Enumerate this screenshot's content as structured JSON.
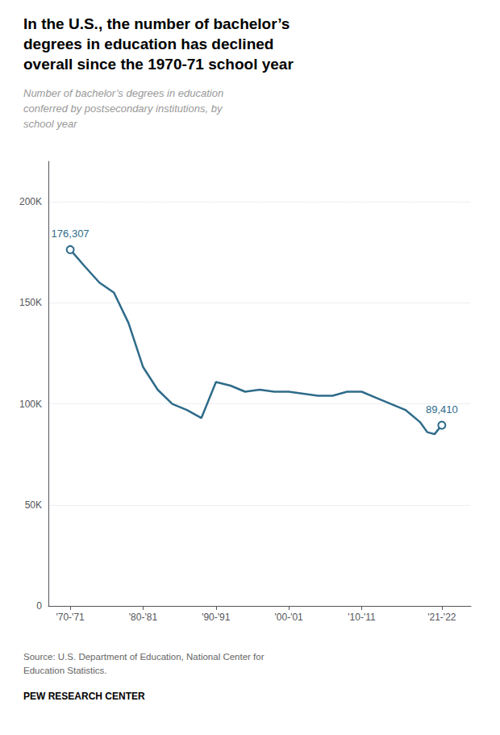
{
  "chart_data": {
    "type": "line",
    "title": "In the U.S., the number of bachelor’s\ndegrees in education has declined\noverall since the 1970-71 school year",
    "subtitle": "Number of bachelor’s degrees in education\nconferred by postsecondary institutions, by\nschool year",
    "source": "Source: U.S. Department of Education, National Center for\nEducation Statistics.",
    "footer": "PEW RESEARCH CENTER",
    "x": [
      1970,
      1972,
      1974,
      1976,
      1978,
      1980,
      1982,
      1984,
      1986,
      1988,
      1990,
      1992,
      1994,
      1996,
      1998,
      2000,
      2002,
      2004,
      2006,
      2008,
      2010,
      2012,
      2014,
      2016,
      2018,
      2019,
      2020,
      2021
    ],
    "values": [
      176307,
      168000,
      160000,
      155000,
      140000,
      118169,
      107000,
      100000,
      97000,
      93000,
      110807,
      109000,
      106000,
      107000,
      106000,
      106000,
      105000,
      104000,
      104000,
      106000,
      106000,
      103000,
      100000,
      97000,
      91000,
      86000,
      85000,
      89410
    ],
    "color": "#2e6b8a",
    "xlim": [
      1967,
      2025
    ],
    "xticks": [
      {
        "value": 1970,
        "label": "'70-'71"
      },
      {
        "value": 1980,
        "label": "'80-'81"
      },
      {
        "value": 1990,
        "label": "'90-'91"
      },
      {
        "value": 2000,
        "label": "'00-'01"
      },
      {
        "value": 2010,
        "label": "'10-'11"
      },
      {
        "value": 2021,
        "label": "'21-'22"
      }
    ],
    "ylim": [
      0,
      220000
    ],
    "yticks": [
      0,
      {
        "value": 50000,
        "label": "50K"
      },
      {
        "value": 100000,
        "label": "100K"
      },
      {
        "value": 150000,
        "label": "150K"
      },
      {
        "value": 200000,
        "label": "200K"
      }
    ],
    "grid": true,
    "annotations": [
      {
        "x": 1970,
        "y": 176307,
        "text": "176,307"
      },
      {
        "x": 2021,
        "y": 89410,
        "text": "89,410"
      }
    ]
  }
}
